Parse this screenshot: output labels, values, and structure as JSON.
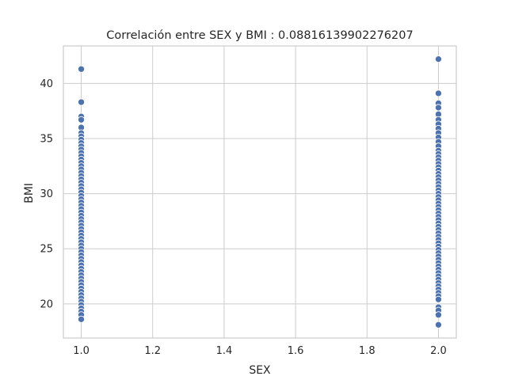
{
  "chart_data": {
    "type": "scatter",
    "title": "Correlación entre SEX y BMI : 0.08816139902276207",
    "xlabel": "SEX",
    "ylabel": "BMI",
    "xlim": [
      0.95,
      2.05
    ],
    "ylim": [
      16.9,
      43.4
    ],
    "xticks": [
      1.0,
      1.2,
      1.4,
      1.6,
      1.8,
      2.0
    ],
    "xtick_labels": [
      "1.0",
      "1.2",
      "1.4",
      "1.6",
      "1.8",
      "2.0"
    ],
    "yticks": [
      20,
      25,
      30,
      35,
      40
    ],
    "ytick_labels": [
      "20",
      "25",
      "30",
      "35",
      "40"
    ],
    "grid": true,
    "point_color": "#4c72b0",
    "series": [
      {
        "x": 1.0,
        "y": [
          41.3,
          38.3,
          37.0,
          36.7,
          36.0,
          35.5,
          35.2,
          34.9,
          34.6,
          34.3,
          34.0,
          33.7,
          33.4,
          33.1,
          32.8,
          32.5,
          32.2,
          31.9,
          31.6,
          31.3,
          31.0,
          30.7,
          30.4,
          30.1,
          29.8,
          29.5,
          29.2,
          28.9,
          28.6,
          28.3,
          28.0,
          27.7,
          27.4,
          27.1,
          26.8,
          26.5,
          26.2,
          25.9,
          25.6,
          25.3,
          25.0,
          24.7,
          24.4,
          24.1,
          23.8,
          23.5,
          23.2,
          22.9,
          22.6,
          22.3,
          22.0,
          21.7,
          21.4,
          21.1,
          20.8,
          20.5,
          20.2,
          19.9,
          19.6,
          19.3,
          19.0,
          18.6
        ]
      },
      {
        "x": 2.0,
        "y": [
          42.2,
          39.1,
          38.2,
          37.8,
          37.2,
          36.7,
          36.3,
          35.9,
          35.5,
          35.1,
          34.7,
          34.3,
          33.9,
          33.6,
          33.3,
          33.0,
          32.7,
          32.4,
          32.1,
          31.8,
          31.5,
          31.2,
          30.9,
          30.6,
          30.3,
          30.0,
          29.7,
          29.4,
          29.1,
          28.8,
          28.5,
          28.2,
          27.9,
          27.6,
          27.3,
          27.0,
          26.7,
          26.4,
          26.1,
          25.8,
          25.5,
          25.2,
          24.9,
          24.6,
          24.3,
          24.0,
          23.7,
          23.4,
          23.1,
          22.8,
          22.5,
          22.2,
          21.9,
          21.6,
          21.3,
          21.0,
          20.7,
          20.4,
          19.7,
          19.4,
          19.0,
          18.1
        ]
      }
    ]
  }
}
